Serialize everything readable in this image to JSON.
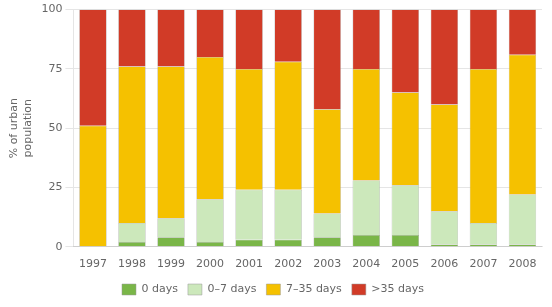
{
  "chart_data": {
    "type": "bar",
    "stacked": true,
    "ylabel": "% of urban\npopulation",
    "categories": [
      "1997",
      "1998",
      "1999",
      "2000",
      "2001",
      "2002",
      "2003",
      "2004",
      "2005",
      "2006",
      "2007",
      "2008"
    ],
    "series": [
      {
        "name": "0 days",
        "color": "#7ab648",
        "values": [
          0,
          2,
          4,
          2,
          3,
          3,
          4,
          5,
          5,
          1,
          1,
          1
        ]
      },
      {
        "name": "0–7 days",
        "color": "#cce8bb",
        "values": [
          0,
          8,
          8,
          18,
          21,
          21,
          10,
          23,
          21,
          14,
          9,
          21
        ]
      },
      {
        "name": "7–35 days",
        "color": "#f5c100",
        "values": [
          51,
          66,
          64,
          60,
          51,
          54,
          44,
          47,
          39,
          45,
          65,
          59
        ]
      },
      {
        "name": ">35 days",
        "color": "#d13b27",
        "values": [
          49,
          24,
          24,
          20,
          25,
          22,
          42,
          25,
          35,
          40,
          25,
          19
        ]
      }
    ],
    "ylim": [
      0,
      100
    ],
    "yticks": [
      0,
      25,
      50,
      75,
      100
    ],
    "grid": true,
    "legend": "bottom"
  }
}
